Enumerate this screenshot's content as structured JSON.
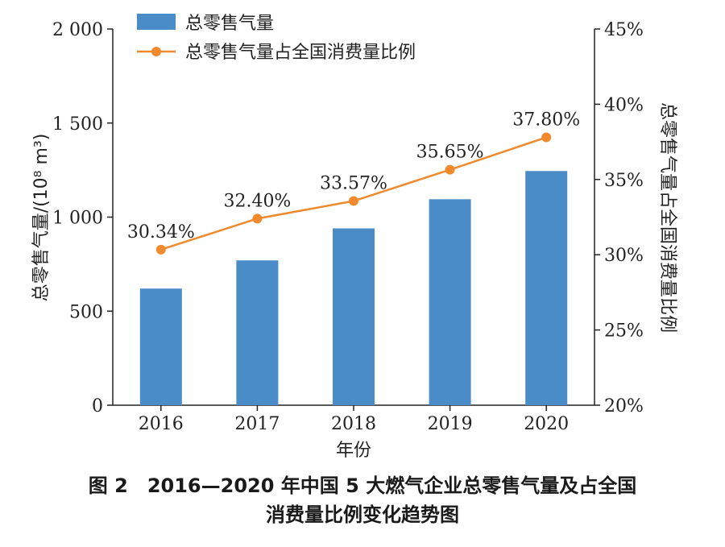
{
  "chart_data": {
    "type": "bar",
    "categories": [
      "2016",
      "2017",
      "2018",
      "2019",
      "2020"
    ],
    "xlabel": "年份",
    "ylabel_left": "总零售气量/(10⁸ m³)",
    "ylabel_right": "总零售气量占全国消费量比例",
    "ylim_left": [
      0,
      2000
    ],
    "yticks_left": [
      0,
      500,
      1000,
      1500,
      2000
    ],
    "ytick_labels_left": [
      "0",
      "500",
      "1 000",
      "1 500",
      "2 000"
    ],
    "ylim_right": [
      20,
      45
    ],
    "yticks_right": [
      20,
      25,
      30,
      35,
      40,
      45
    ],
    "ytick_labels_right": [
      "20%",
      "25%",
      "30%",
      "35%",
      "40%",
      "45%"
    ],
    "series": [
      {
        "name": "总零售气量",
        "type": "bar",
        "axis": "left",
        "color": "#4a8cc7",
        "values": [
          620,
          770,
          940,
          1095,
          1245
        ]
      },
      {
        "name": "总零售气量占全国消费量比例",
        "type": "line",
        "axis": "right",
        "color": "#f08a2c",
        "values": [
          30.34,
          32.4,
          33.57,
          35.65,
          37.8
        ],
        "labels": [
          "30.34%",
          "32.40%",
          "33.57%",
          "35.65%",
          "37.80%"
        ]
      }
    ],
    "legend_position": "top-left",
    "grid": false
  },
  "caption": {
    "line1": "图 2　2016—2020 年中国 5 大燃气企业总零售气量及占全国",
    "line2": "消费量比例变化趋势图"
  }
}
